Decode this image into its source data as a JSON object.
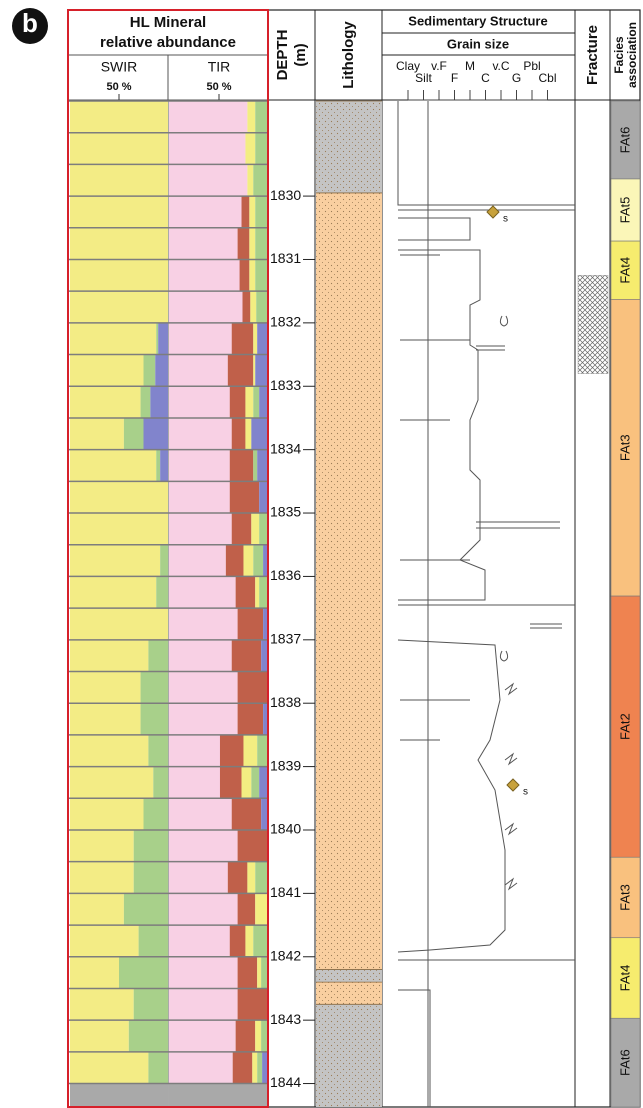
{
  "figure_label": "b",
  "mineral": {
    "title_lines": [
      "HL Mineral",
      "relative abundance"
    ],
    "depth_bounds": [
      1828.5,
      1829,
      1829.5,
      1830,
      1830.5,
      1831,
      1831.5,
      1832,
      1832.5,
      1833,
      1833.5,
      1834,
      1834.5,
      1835,
      1835.5,
      1836,
      1836.5,
      1837,
      1837.5,
      1838,
      1838.5,
      1839,
      1839.5,
      1840,
      1840.5,
      1841,
      1841.5,
      1842,
      1842.5,
      1843,
      1843.5,
      1844
    ],
    "swir": {
      "label": "SWIR",
      "tick_label": "50 %",
      "components": [
        {
          "color": "#f3ec85",
          "values": [
            100,
            100,
            100,
            100,
            100,
            100,
            100,
            88,
            75,
            72,
            55,
            88,
            100,
            100,
            92,
            88,
            100,
            80,
            72,
            72,
            80,
            85,
            75,
            65,
            65,
            55,
            70,
            50,
            65,
            60,
            80
          ]
        },
        {
          "color": "#a8d08a",
          "values": [
            0,
            0,
            0,
            0,
            0,
            0,
            0,
            2,
            12,
            10,
            20,
            4,
            0,
            0,
            8,
            12,
            0,
            20,
            28,
            28,
            20,
            15,
            25,
            35,
            35,
            45,
            30,
            50,
            35,
            40,
            20
          ]
        },
        {
          "color": "#8184cc",
          "values": [
            0,
            0,
            0,
            0,
            0,
            0,
            0,
            10,
            13,
            18,
            25,
            8,
            0,
            0,
            0,
            0,
            0,
            0,
            0,
            0,
            0,
            0,
            0,
            0,
            0,
            0,
            0,
            0,
            0,
            0,
            0
          ]
        }
      ]
    },
    "tir": {
      "label": "TIR",
      "tick_label": "50 %",
      "components": [
        {
          "color": "#f8d0e4",
          "values": [
            80,
            78,
            80,
            74,
            70,
            72,
            75,
            64,
            60,
            62,
            64,
            62,
            62,
            64,
            58,
            68,
            70,
            64,
            70,
            70,
            52,
            52,
            64,
            70,
            60,
            70,
            62,
            70,
            70,
            68,
            65
          ]
        },
        {
          "color": "#c0604a",
          "values": [
            0,
            0,
            0,
            8,
            12,
            10,
            8,
            22,
            26,
            16,
            14,
            24,
            30,
            20,
            18,
            20,
            26,
            30,
            30,
            26,
            24,
            22,
            30,
            30,
            20,
            18,
            16,
            20,
            30,
            20,
            20
          ]
        },
        {
          "color": "#f3ee82",
          "values": [
            8,
            10,
            6,
            6,
            6,
            6,
            6,
            4,
            2,
            8,
            6,
            0,
            0,
            8,
            10,
            4,
            0,
            0,
            0,
            0,
            14,
            10,
            0,
            0,
            8,
            12,
            8,
            4,
            0,
            6,
            5
          ]
        },
        {
          "color": "#a8d08a",
          "values": [
            12,
            12,
            14,
            12,
            12,
            12,
            11,
            0,
            0,
            6,
            0,
            4,
            0,
            8,
            10,
            8,
            0,
            0,
            0,
            0,
            10,
            8,
            0,
            0,
            12,
            0,
            14,
            6,
            0,
            6,
            5
          ]
        },
        {
          "color": "#8184cc",
          "values": [
            0,
            0,
            0,
            0,
            0,
            0,
            0,
            10,
            12,
            8,
            16,
            10,
            8,
            0,
            4,
            0,
            4,
            6,
            0,
            4,
            0,
            8,
            6,
            0,
            0,
            0,
            0,
            0,
            0,
            0,
            5
          ]
        }
      ]
    }
  },
  "depth_axis": {
    "label": "DEPTH",
    "unit": "(m)",
    "lim": [
      1828.5,
      1844.37
    ],
    "ticks": [
      1830,
      1831,
      1832,
      1833,
      1834,
      1835,
      1836,
      1837,
      1838,
      1839,
      1840,
      1841,
      1842,
      1843,
      1844
    ]
  },
  "lithology": {
    "label": "Lithology",
    "beds": [
      {
        "top": 1828.5,
        "base": 1829.95,
        "color": "#c4c4c4"
      },
      {
        "top": 1829.95,
        "base": 1842.2,
        "color": "#f9cfa0"
      },
      {
        "top": 1842.2,
        "base": 1842.4,
        "color": "#c4c4c4"
      },
      {
        "top": 1842.4,
        "base": 1842.75,
        "color": "#f9cfa0"
      },
      {
        "top": 1842.75,
        "base": 1844.37,
        "color": "#c4c4c4"
      }
    ]
  },
  "sedimentary": {
    "title": "Sedimentary Structure",
    "subtitle": "Grain size",
    "grain_classes_upper": [
      "Clay",
      "v.F",
      "M",
      "v.C",
      "Pbl"
    ],
    "grain_classes_lower": [
      "Silt",
      "F",
      "C",
      "G",
      "Cbl"
    ],
    "annotations": [
      "s",
      "s"
    ]
  },
  "fracture": {
    "label": "Fracture",
    "zones": [
      {
        "top": 1831.25,
        "base": 1832.8
      }
    ]
  },
  "facies": {
    "label_lines": [
      "Facies",
      "association"
    ],
    "units": [
      {
        "name": "FAt6",
        "top": 1828.5,
        "base": 1829.73,
        "color": "#a9a9a9"
      },
      {
        "name": "FAt5",
        "top": 1829.73,
        "base": 1830.71,
        "color": "#fbf6b8"
      },
      {
        "name": "FAt4",
        "top": 1830.71,
        "base": 1831.63,
        "color": "#f6ec6e"
      },
      {
        "name": "FAt3",
        "top": 1831.63,
        "base": 1836.31,
        "color": "#f9c17e"
      },
      {
        "name": "FAt2",
        "top": 1836.31,
        "base": 1840.43,
        "color": "#ef8350"
      },
      {
        "name": "FAt3",
        "top": 1840.43,
        "base": 1841.7,
        "color": "#f9c17e"
      },
      {
        "name": "FAt4",
        "top": 1841.7,
        "base": 1842.97,
        "color": "#f6ec6e"
      },
      {
        "name": "FAt6",
        "top": 1842.97,
        "base": 1844.37,
        "color": "#a9a9a9"
      }
    ]
  }
}
